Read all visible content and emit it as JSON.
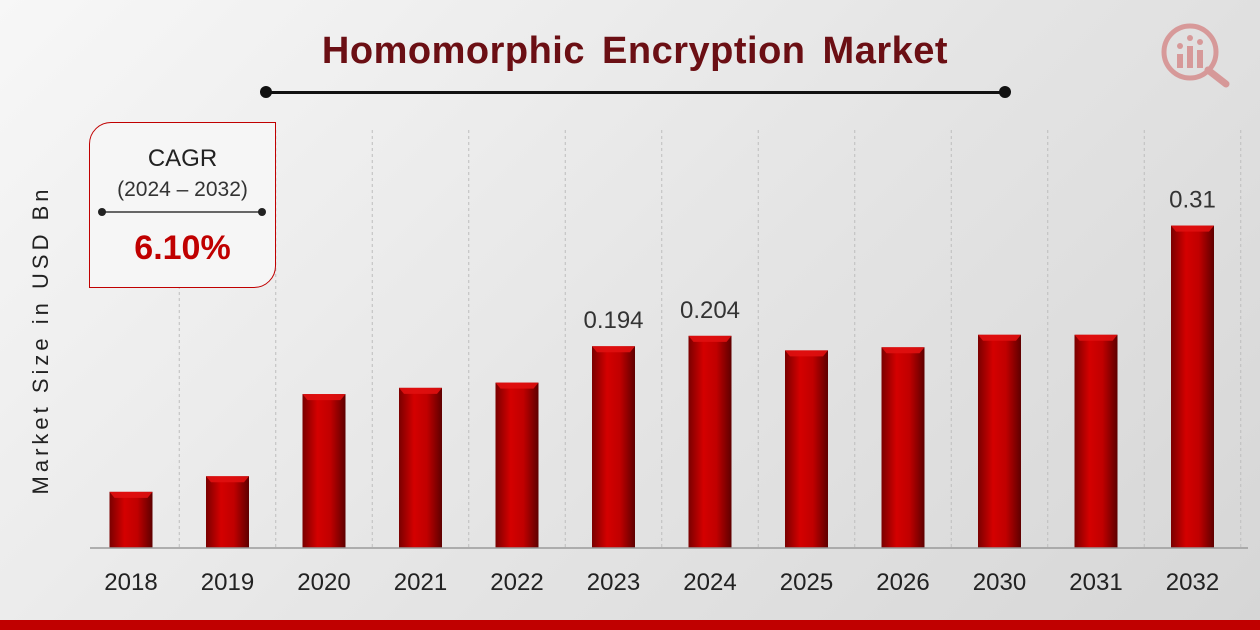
{
  "title": "Homomorphic Encryption Market",
  "cagr": {
    "label": "CAGR",
    "period": "(2024 – 2032)",
    "value": "6.10%"
  },
  "colors": {
    "bar": "#c00000",
    "title": "#6b0f14",
    "accent_band": "#c00000"
  },
  "icons": [
    "market-research-logo-icon"
  ],
  "chart_data": {
    "type": "bar",
    "ylabel": "Market Size in USD Bn",
    "xlabel": "",
    "categories": [
      "2018",
      "2019",
      "2020",
      "2021",
      "2022",
      "2023",
      "2024",
      "2025",
      "2026",
      "2030",
      "2031",
      "2032"
    ],
    "values": [
      0.054,
      0.069,
      0.148,
      0.154,
      0.159,
      0.194,
      0.204,
      0.19,
      0.193,
      0.205,
      0.205,
      0.31
    ],
    "data_labels": {
      "5": "0.194",
      "6": "0.204",
      "11": "0.31"
    },
    "grid": "vertical dashed",
    "legend": "none"
  }
}
